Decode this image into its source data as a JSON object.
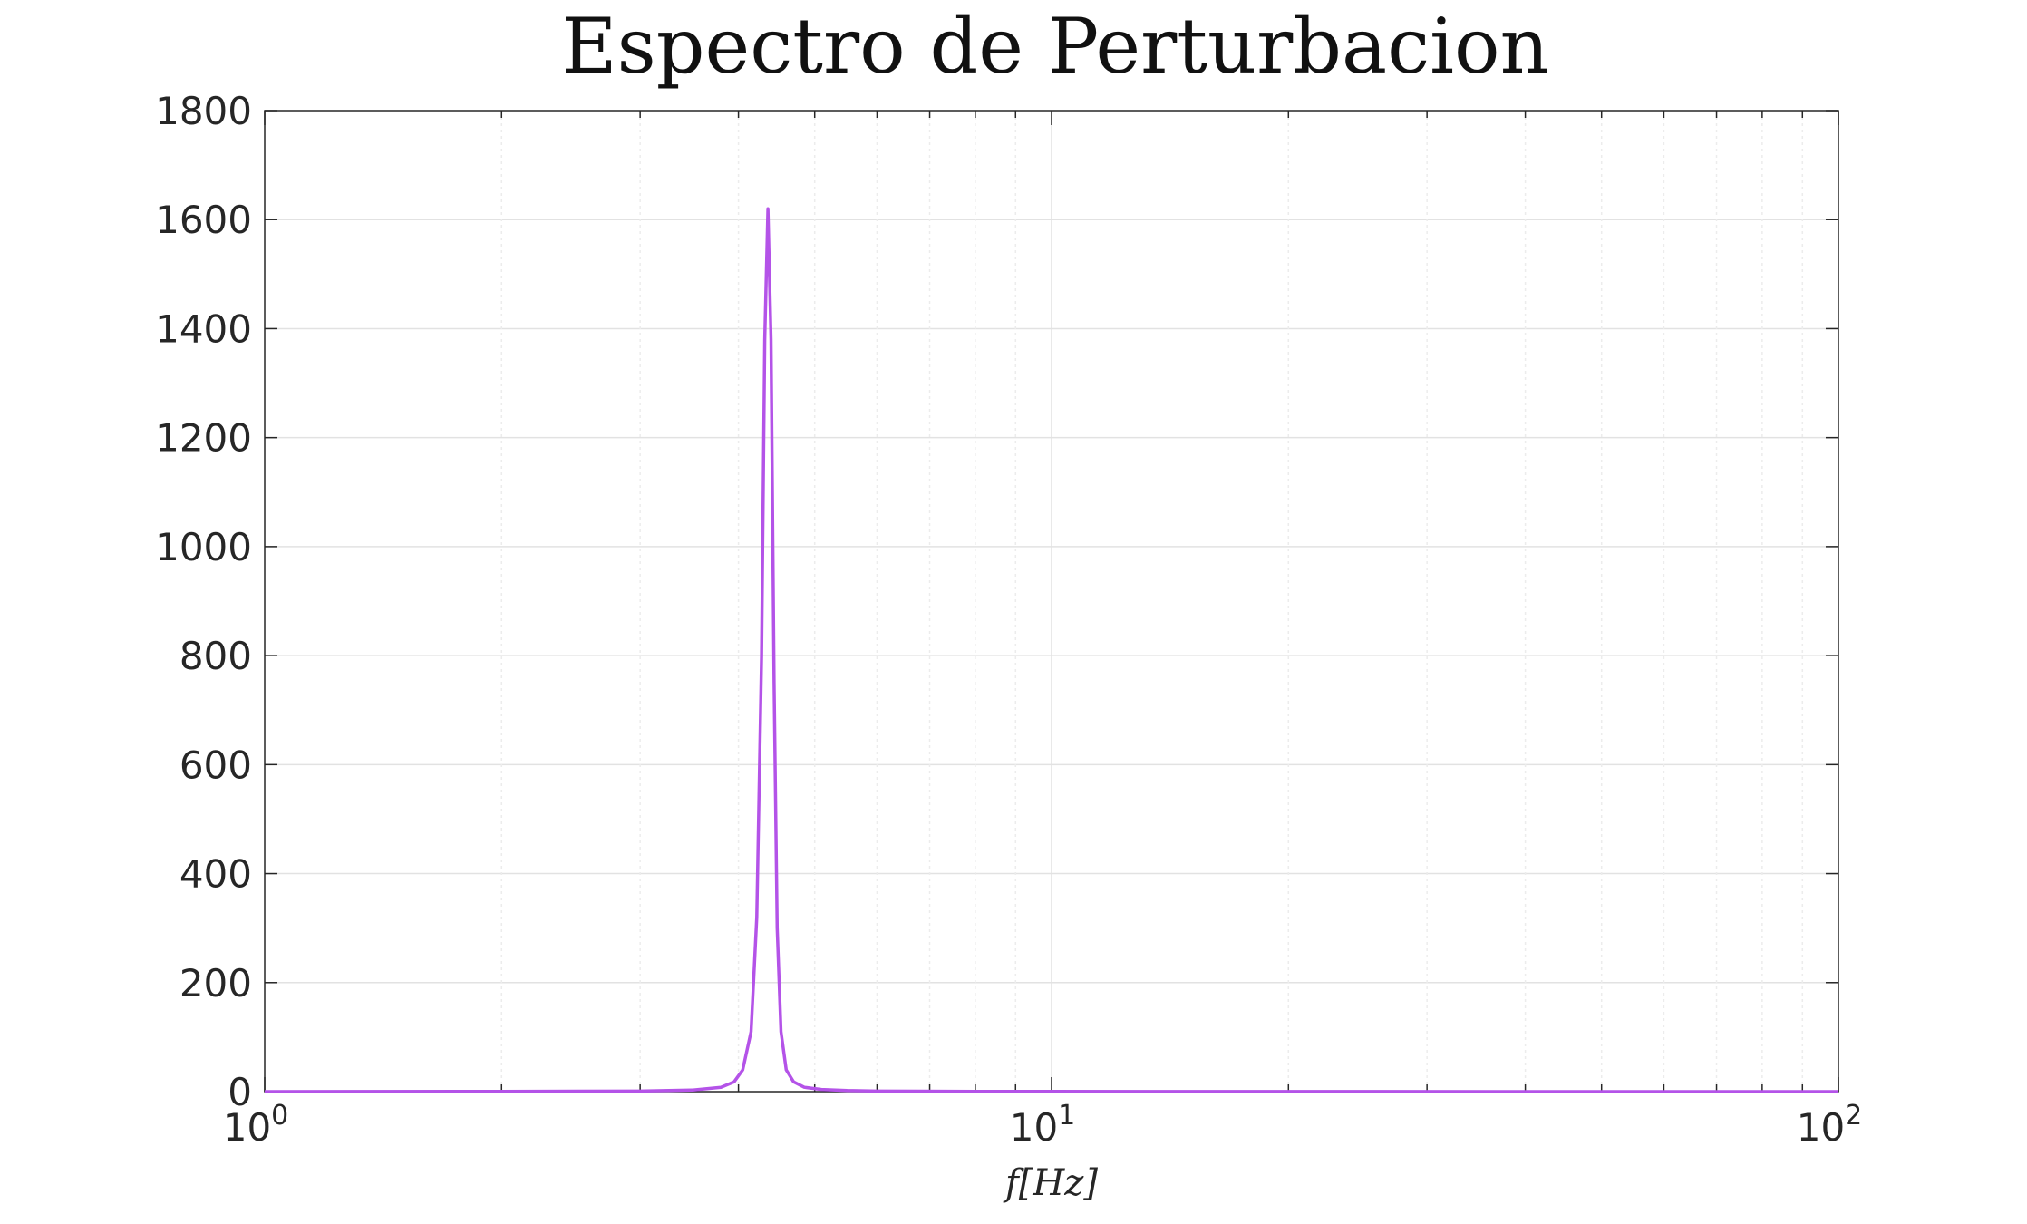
{
  "chart_data": {
    "type": "line",
    "title": "Espectro de Perturbacion",
    "xlabel": "f[Hz]",
    "ylabel": "",
    "xscale": "log",
    "xlim": [
      1,
      100
    ],
    "ylim": [
      0,
      1800
    ],
    "grid": true,
    "x_ticks": [
      {
        "base": "10",
        "exp": "0"
      },
      {
        "base": "10",
        "exp": "1"
      },
      {
        "base": "10",
        "exp": "2"
      }
    ],
    "y_ticks": [
      "0",
      "200",
      "400",
      "600",
      "800",
      "1000",
      "1200",
      "1400",
      "1600",
      "1800"
    ],
    "series": [
      {
        "color": "#b453e8",
        "x": [
          1,
          2,
          3,
          3.5,
          3.8,
          3.95,
          4.05,
          4.15,
          4.22,
          4.28,
          4.32,
          4.36,
          4.4,
          4.44,
          4.48,
          4.53,
          4.6,
          4.7,
          4.85,
          5.1,
          5.5,
          6,
          8,
          10,
          20,
          50,
          100
        ],
        "y": [
          0,
          0.5,
          1,
          3,
          8,
          18,
          40,
          110,
          320,
          800,
          1380,
          1620,
          1380,
          750,
          300,
          110,
          40,
          18,
          8,
          4,
          2,
          1,
          0.5,
          0.3,
          0.1,
          0,
          0
        ]
      }
    ]
  }
}
